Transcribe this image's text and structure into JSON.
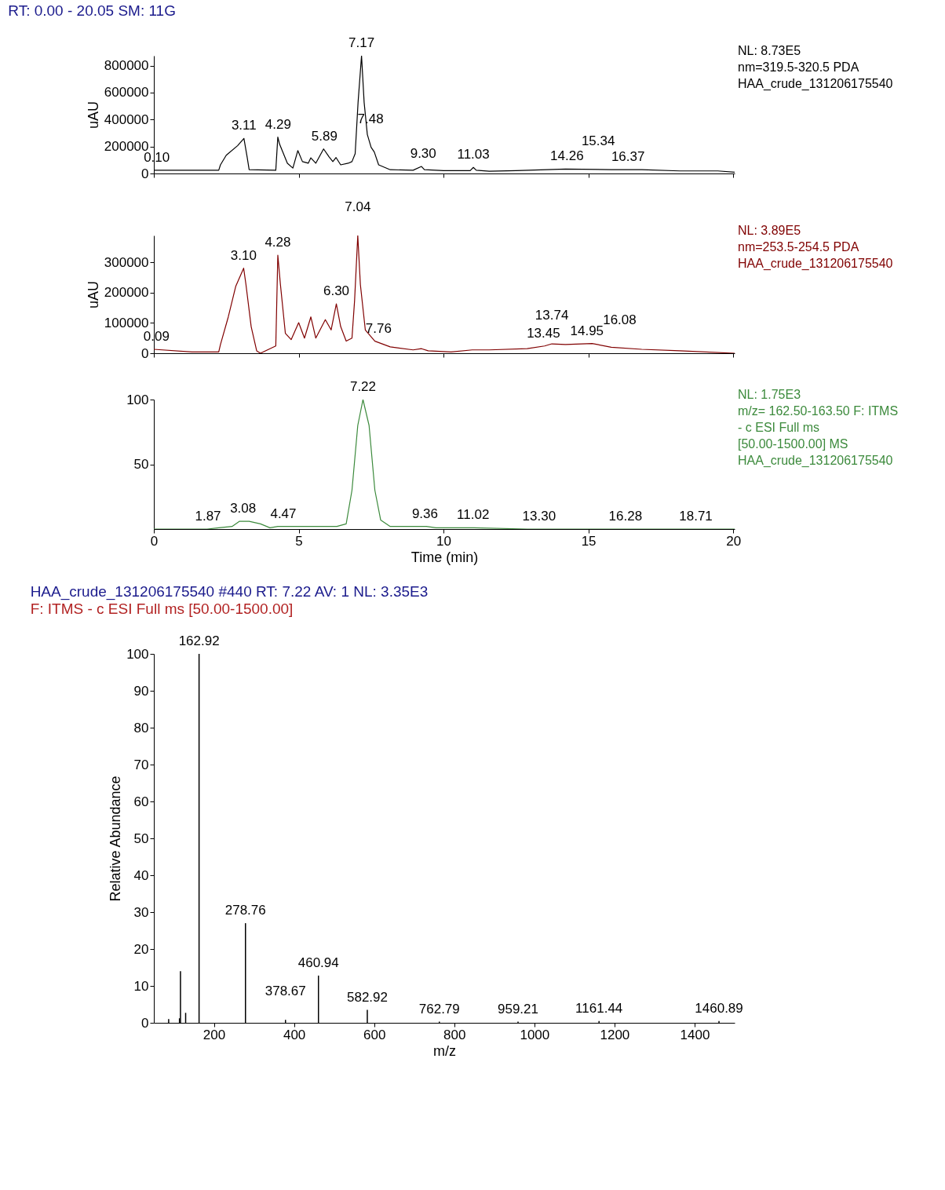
{
  "chart_data": [
    {
      "type": "line",
      "title": "RT: 0.00 - 20.05   SM: 11G",
      "ylabel": "uAU",
      "xlim": [
        0,
        20.05
      ],
      "xticks": [
        0,
        5,
        10,
        15,
        20
      ],
      "ylim": [
        0,
        873000
      ],
      "yticks": [
        0,
        200000,
        400000,
        600000,
        800000
      ],
      "tick_labels": "y",
      "grid": false,
      "series": [
        {
          "color": "#000000",
          "x": [
            0.0,
            2.24,
            2.3,
            2.5,
            2.89,
            3.11,
            3.22,
            3.29,
            4.21,
            4.28,
            4.34,
            4.61,
            4.8,
            4.97,
            5.13,
            5.33,
            5.42,
            5.59,
            5.86,
            6.05,
            6.18,
            6.29,
            6.45,
            6.71,
            6.84,
            6.95,
            7.05,
            7.17,
            7.26,
            7.37,
            7.5,
            7.61,
            7.76,
            8.16,
            8.95,
            9.24,
            9.34,
            10.0,
            10.92,
            11.03,
            11.13,
            11.58,
            12.5,
            14.21,
            15.79,
            16.84,
            18.16,
            19.47,
            20.05
          ],
          "values": [
            24000,
            24000,
            64000,
            135000,
            206000,
            260000,
            123000,
            28000,
            24000,
            270000,
            218000,
            76000,
            40000,
            170000,
            88000,
            76000,
            116000,
            76000,
            182000,
            123000,
            88000,
            118000,
            64000,
            76000,
            88000,
            147000,
            526000,
            873000,
            526000,
            289000,
            194000,
            159000,
            64000,
            28000,
            24000,
            52000,
            28000,
            21000,
            21000,
            45000,
            24000,
            17000,
            21000,
            33000,
            28000,
            28000,
            19000,
            19000,
            9000
          ]
        }
      ],
      "annotations": [
        "NL: 8.73E5",
        "nm=319.5-320.5  PDA",
        "HAA_crude_131206175540",
        {
          "text": "0.10",
          "x": 0.1,
          "y": 24000
        },
        {
          "text": "3.11",
          "x": 3.11,
          "y": 260000
        },
        {
          "text": "4.29",
          "x": 4.29,
          "y": 270000
        },
        {
          "text": "5.89",
          "x": 5.89,
          "y": 182000
        },
        {
          "text": "7.17",
          "x": 7.17,
          "y": 873000
        },
        {
          "text": "7.48",
          "x": 7.48,
          "y": 194000
        },
        {
          "text": "9.30",
          "x": 9.3,
          "y": 52000
        },
        {
          "text": "11.03",
          "x": 11.03,
          "y": 45000
        },
        {
          "text": "14.26",
          "x": 14.26,
          "y": 33000
        },
        {
          "text": "15.34",
          "x": 15.34,
          "y": 30000
        },
        {
          "text": "16.37",
          "x": 16.37,
          "y": 28000
        }
      ]
    },
    {
      "type": "line",
      "ylabel": "uAU",
      "xlim": [
        0,
        20.05
      ],
      "xticks": [
        0,
        5,
        10,
        15,
        20
      ],
      "ylim": [
        0,
        389000
      ],
      "yticks": [
        0,
        100000,
        200000,
        300000
      ],
      "tick_labels": "y",
      "grid": false,
      "series": [
        {
          "color": "#800000",
          "x": [
            0.0,
            1.32,
            2.24,
            2.3,
            2.57,
            2.83,
            3.1,
            3.18,
            3.36,
            3.55,
            3.68,
            4.08,
            4.21,
            4.28,
            4.37,
            4.54,
            4.74,
            5.0,
            5.2,
            5.42,
            5.59,
            5.92,
            6.12,
            6.3,
            6.45,
            6.64,
            6.84,
            6.93,
            7.04,
            7.13,
            7.3,
            7.63,
            8.16,
            8.95,
            9.24,
            9.47,
            10.26,
            10.99,
            11.58,
            12.89,
            13.49,
            13.74,
            14.21,
            15.13,
            15.79,
            16.84,
            18.16,
            20.05
          ],
          "values": [
            13000,
            4000,
            4000,
            29000,
            120000,
            222000,
            281000,
            227000,
            88000,
            8000,
            0,
            18000,
            24000,
            324000,
            227000,
            66000,
            45000,
            101000,
            50000,
            120000,
            50000,
            111000,
            77000,
            163000,
            88000,
            40000,
            50000,
            174000,
            389000,
            227000,
            77000,
            40000,
            21000,
            11000,
            15000,
            8000,
            4000,
            11000,
            11000,
            15000,
            24000,
            31000,
            29000,
            32000,
            20000,
            13000,
            8000,
            0
          ]
        }
      ],
      "annotations": [
        "NL: 3.89E5",
        "nm=253.5-254.5  PDA",
        "HAA_crude_131206175540",
        {
          "text": "0.09",
          "x": 0.09,
          "y": 13000
        },
        {
          "text": "3.10",
          "x": 3.1,
          "y": 281000
        },
        {
          "text": "4.28",
          "x": 4.28,
          "y": 324000
        },
        {
          "text": "6.30",
          "x": 6.3,
          "y": 163000
        },
        {
          "text": "7.04",
          "x": 7.04,
          "y": 389000
        },
        {
          "text": "7.76",
          "x": 7.76,
          "y": 40000
        },
        {
          "text": "13.45",
          "x": 13.45,
          "y": 24000
        },
        {
          "text": "13.74",
          "x": 13.74,
          "y": 31000
        },
        {
          "text": "14.95",
          "x": 14.95,
          "y": 32000
        },
        {
          "text": "16.08",
          "x": 16.08,
          "y": 15000
        }
      ]
    },
    {
      "type": "line",
      "xlabel": "Time (min)",
      "xlim": [
        0,
        20.05
      ],
      "xticks": [
        0,
        5,
        10,
        15,
        20
      ],
      "ylim": [
        0,
        100
      ],
      "yticks": [
        50,
        100
      ],
      "grid": false,
      "series": [
        {
          "color": "#3c8a3c",
          "x": [
            0.0,
            1.84,
            2.24,
            2.7,
            2.96,
            3.29,
            3.68,
            4.01,
            4.28,
            4.74,
            6.32,
            6.64,
            6.84,
            7.04,
            7.22,
            7.43,
            7.63,
            7.83,
            8.16,
            8.95,
            9.41,
            9.74,
            11.05,
            12.89,
            20.05
          ],
          "values": [
            0,
            0,
            1,
            2,
            6,
            6,
            4,
            1,
            2,
            2,
            2,
            4,
            30,
            80,
            100,
            80,
            30,
            7,
            2,
            2,
            2,
            1,
            1,
            0,
            0
          ]
        }
      ],
      "annotations": [
        "NL: 1.75E3",
        "m/z= 162.50-163.50 F: ITMS",
        "- c ESI Full ms",
        "[50.00-1500.00]  MS",
        "HAA_crude_131206175540",
        {
          "text": "1.87",
          "x": 1.87,
          "y": 0
        },
        {
          "text": "3.08",
          "x": 3.08,
          "y": 6
        },
        {
          "text": "4.47",
          "x": 4.47,
          "y": 2
        },
        {
          "text": "7.22",
          "x": 7.22,
          "y": 100
        },
        {
          "text": "9.36",
          "x": 9.36,
          "y": 2
        },
        {
          "text": "11.02",
          "x": 11.02,
          "y": 1
        },
        {
          "text": "13.30",
          "x": 13.3,
          "y": 0
        },
        {
          "text": "16.28",
          "x": 16.28,
          "y": 0
        },
        {
          "text": "18.71",
          "x": 18.71,
          "y": 0
        }
      ]
    },
    {
      "type": "bar",
      "title": "HAA_crude_131206175540 #440   RT: 7.22   AV: 1   NL: 3.35E3",
      "subtitle": "F: ITMS - c ESI Full ms [50.00-1500.00]",
      "xlabel": "m/z",
      "ylabel": "Relative Abundance",
      "xlim": [
        50,
        1500
      ],
      "xticks": [
        200,
        400,
        600,
        800,
        1000,
        1200,
        1400
      ],
      "ylim": [
        0,
        100
      ],
      "yticks": [
        0,
        10,
        20,
        30,
        40,
        50,
        60,
        70,
        80,
        90,
        100
      ],
      "grid": false,
      "series": [
        {
          "color": "#000000",
          "x": [
            87,
            114,
            116.5,
            129.4,
            162.92,
            278.76,
            378.67,
            460.94,
            582.92,
            762.79,
            959.21,
            1161.44,
            1460.89
          ],
          "values": [
            1.0,
            1.2,
            14,
            2.7,
            100,
            27,
            0.8,
            12.8,
            3.5,
            0.3,
            0.3,
            0.5,
            0.5
          ]
        }
      ],
      "annotations": [
        {
          "text": "162.92",
          "x": 162.92,
          "y": 100
        },
        {
          "text": "278.76",
          "x": 278.76,
          "y": 27
        },
        {
          "text": "378.67",
          "x": 378.67,
          "y": 0.8
        },
        {
          "text": "460.94",
          "x": 460.94,
          "y": 12.8
        },
        {
          "text": "582.92",
          "x": 582.92,
          "y": 3.5
        },
        {
          "text": "762.79",
          "x": 762.79,
          "y": 0.3
        },
        {
          "text": "959.21",
          "x": 959.21,
          "y": 0.3
        },
        {
          "text": "1161.44",
          "x": 1161.44,
          "y": 0.5
        },
        {
          "text": "1460.89",
          "x": 1460.89,
          "y": 0.5
        }
      ]
    }
  ]
}
